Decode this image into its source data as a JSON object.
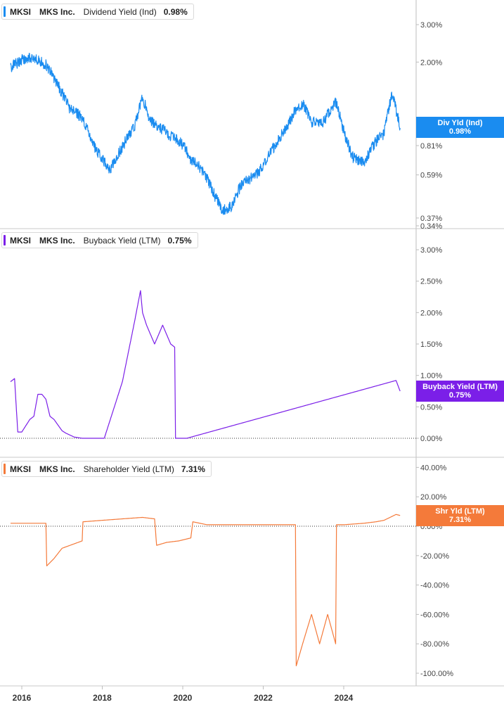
{
  "panels": [
    {
      "ticker": "MKSI",
      "company": "MKS Inc.",
      "metric": "Dividend Yield (Ind)",
      "value": "0.98%",
      "color": "#1a8cf0",
      "badge_line1": "Div Yld (Ind)",
      "badge_line2": "0.98%",
      "y_scale": "log",
      "y_ticks": [
        "3.00%",
        "2.00%",
        "0.81%",
        "0.59%",
        "0.37%",
        "0.34%"
      ]
    },
    {
      "ticker": "MKSI",
      "company": "MKS Inc.",
      "metric": "Buyback Yield (LTM)",
      "value": "0.75%",
      "color": "#7b1fe8",
      "badge_line1": "Buyback Yield (LTM)",
      "badge_line2": "0.75%",
      "y_scale": "linear",
      "y_ticks": [
        "3.00%",
        "2.50%",
        "2.00%",
        "1.50%",
        "1.00%",
        "0.50%",
        "0.00%"
      ]
    },
    {
      "ticker": "MKSI",
      "company": "MKS Inc.",
      "metric": "Shareholder Yield (LTM)",
      "value": "7.31%",
      "color": "#f47a3a",
      "badge_line1": "Shr Yld (LTM)",
      "badge_line2": "7.31%",
      "y_scale": "linear",
      "y_ticks": [
        "40.00%",
        "20.00%",
        "0.00%",
        "-20.00%",
        "-40.00%",
        "-60.00%",
        "-80.00%",
        "-100.00%"
      ]
    }
  ],
  "x_axis": {
    "ticks": [
      "2016",
      "2018",
      "2020",
      "2022",
      "2024"
    ]
  },
  "chart_data": [
    {
      "type": "line",
      "series": [
        {
          "name": "Dividend Yield (Ind)",
          "x": [
            2015.72,
            2016.0,
            2016.3,
            2016.6,
            2016.9,
            2017.2,
            2017.5,
            2017.8,
            2018.0,
            2018.2,
            2018.5,
            2018.8,
            2019.0,
            2019.2,
            2019.4,
            2019.7,
            2020.0,
            2020.2,
            2020.5,
            2020.8,
            2021.0,
            2021.2,
            2021.5,
            2021.8,
            2022.0,
            2022.3,
            2022.6,
            2022.8,
            2023.0,
            2023.2,
            2023.5,
            2023.8,
            2024.0,
            2024.2,
            2024.5,
            2024.8,
            2025.0,
            2025.2,
            2025.4
          ],
          "values": [
            1.9,
            2.05,
            2.1,
            1.95,
            1.55,
            1.2,
            1.1,
            0.8,
            0.7,
            0.62,
            0.8,
            1.0,
            1.35,
            1.05,
            1.0,
            0.9,
            0.82,
            0.7,
            0.62,
            0.47,
            0.4,
            0.42,
            0.55,
            0.58,
            0.65,
            0.82,
            1.0,
            1.2,
            1.25,
            1.05,
            1.05,
            1.3,
            0.95,
            0.72,
            0.68,
            0.85,
            0.92,
            1.42,
            0.98
          ]
        }
      ],
      "ylim": [
        0.34,
        4.0
      ],
      "y_scale": "log"
    },
    {
      "type": "line",
      "series": [
        {
          "name": "Buyback Yield (LTM)",
          "x": [
            2015.72,
            2015.82,
            2015.9,
            2016.0,
            2016.2,
            2016.3,
            2016.4,
            2016.5,
            2016.6,
            2016.7,
            2016.8,
            2017.0,
            2017.1,
            2017.3,
            2017.5,
            2018.05,
            2018.5,
            2018.8,
            2018.95,
            2019.0,
            2019.1,
            2019.3,
            2019.5,
            2019.7,
            2019.8,
            2019.82,
            2020.1,
            2025.3,
            2025.4
          ],
          "values": [
            0.9,
            0.95,
            0.1,
            0.1,
            0.3,
            0.35,
            0.7,
            0.7,
            0.62,
            0.35,
            0.3,
            0.12,
            0.08,
            0.02,
            0.0,
            0.0,
            0.9,
            1.85,
            2.35,
            2.0,
            1.8,
            1.5,
            1.8,
            1.5,
            1.45,
            0.0,
            0.0,
            0.92,
            0.75
          ]
        }
      ],
      "ylim": [
        0.0,
        3.0
      ],
      "y_scale": "linear"
    },
    {
      "type": "line",
      "series": [
        {
          "name": "Shareholder Yield (LTM)",
          "x": [
            2015.72,
            2016.0,
            2016.3,
            2016.6,
            2016.62,
            2016.8,
            2017.0,
            2017.3,
            2017.5,
            2017.52,
            2018.0,
            2018.5,
            2019.0,
            2019.3,
            2019.35,
            2019.6,
            2019.9,
            2020.2,
            2020.25,
            2020.6,
            2021.0,
            2021.5,
            2022.0,
            2022.5,
            2022.8,
            2022.82,
            2023.0,
            2023.2,
            2023.4,
            2023.6,
            2023.8,
            2023.82,
            2024.0,
            2024.5,
            2024.8,
            2025.0,
            2025.3,
            2025.4
          ],
          "values": [
            2.0,
            2.0,
            2.0,
            2.0,
            -27.0,
            -22.0,
            -15.0,
            -12.0,
            -10.0,
            3.0,
            4.0,
            5.0,
            6.0,
            5.0,
            -13.0,
            -11.0,
            -10.0,
            -8.0,
            3.0,
            1.0,
            1.0,
            1.0,
            1.0,
            1.0,
            1.0,
            -95.0,
            -78.0,
            -60.0,
            -80.0,
            -60.0,
            -80.0,
            1.0,
            1.0,
            2.0,
            3.0,
            4.0,
            8.0,
            7.31
          ]
        }
      ],
      "ylim": [
        -105.0,
        45.0
      ],
      "y_scale": "linear"
    }
  ]
}
